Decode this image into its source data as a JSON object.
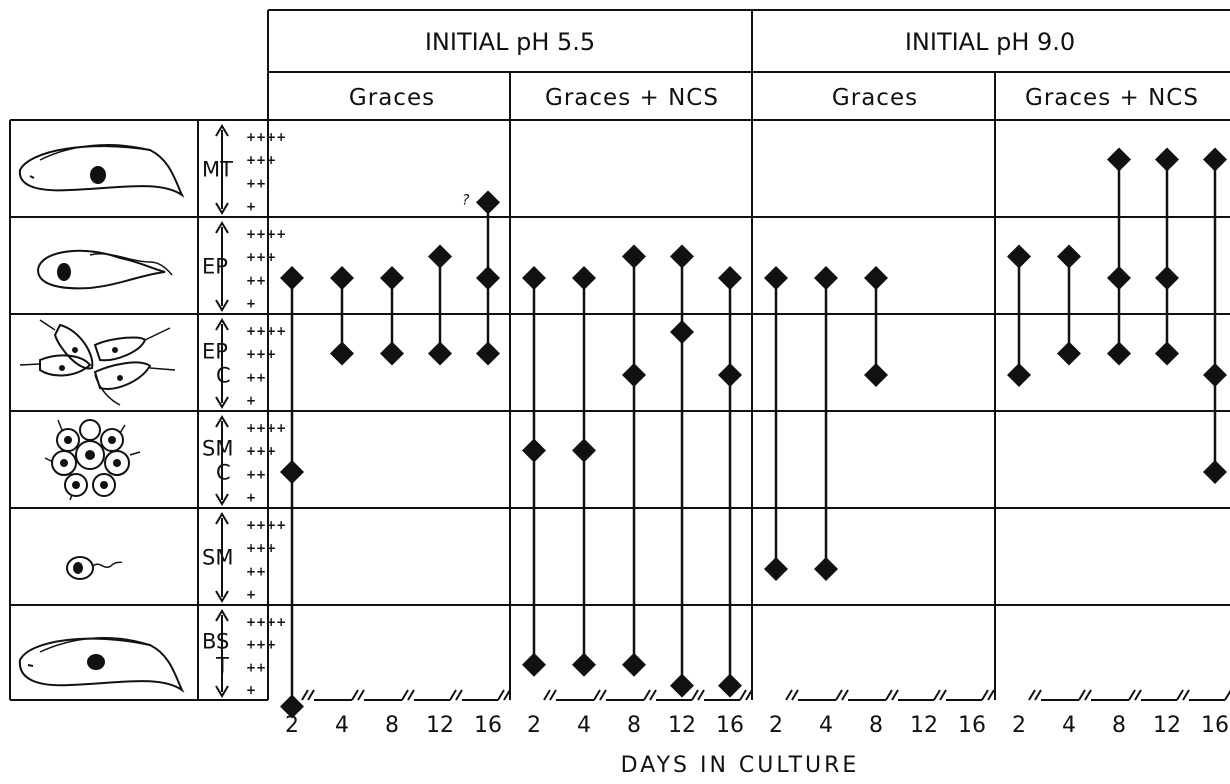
{
  "headers": {
    "ph_left": "INITIAL pH 5.5",
    "ph_right": "INITIAL pH 9.0",
    "groups": [
      "Graces",
      "Graces + NCS",
      "Graces",
      "Graces + NCS"
    ]
  },
  "rows": [
    {
      "stage": "MT",
      "icon": "metacyclic-trypomastigote-icon",
      "levels": [
        "++++",
        "+++",
        "++",
        "+"
      ]
    },
    {
      "stage": "EP",
      "icon": "epimastigote-icon",
      "levels": [
        "++++",
        "+++",
        "++",
        "+"
      ]
    },
    {
      "stage": "EP C",
      "icon": "epimastigote-cluster-icon",
      "levels": [
        "++++",
        "+++",
        "++",
        "+"
      ]
    },
    {
      "stage": "SM C",
      "icon": "sphaeromastigote-cluster-icon",
      "levels": [
        "++++",
        "+++",
        "++",
        "+"
      ]
    },
    {
      "stage": "SM",
      "icon": "sphaeromastigote-icon",
      "levels": [
        "++++",
        "+++",
        "++",
        "+"
      ]
    },
    {
      "stage": "BS T",
      "icon": "bloodstream-trypomastigote-icon",
      "levels": [
        "++++",
        "+++",
        "++",
        "+"
      ]
    }
  ],
  "days": [
    "2",
    "4",
    "8",
    "12",
    "16"
  ],
  "x_label": "DAYS IN CULTURE",
  "question_mark": "?",
  "chart_data": {
    "type": "scatter",
    "x": [
      "2",
      "4",
      "8",
      "12",
      "16"
    ],
    "y_categories": [
      "MT",
      "EP",
      "EP C",
      "SM C",
      "SM",
      "BS T"
    ],
    "y_levels": [
      "+",
      "++",
      "+++",
      "++++"
    ],
    "xlabel": "DAYS IN CULTURE",
    "series": [
      {
        "name": "Graces",
        "points": [
          {
            "day": "2",
            "markers": [
              {
                "stage": "EP",
                "level": 2
              },
              {
                "stage": "SM C",
                "level": 2
              },
              {
                "stage": "BS T",
                "level": 0
              }
            ]
          },
          {
            "day": "4",
            "markers": [
              {
                "stage": "EP",
                "level": 2
              },
              {
                "stage": "EP C",
                "level": 3
              }
            ]
          },
          {
            "day": "8",
            "markers": [
              {
                "stage": "EP",
                "level": 2
              },
              {
                "stage": "EP C",
                "level": 3
              }
            ]
          },
          {
            "day": "12",
            "markers": [
              {
                "stage": "EP",
                "level": 3
              },
              {
                "stage": "EP C",
                "level": 3
              }
            ]
          },
          {
            "day": "16",
            "markers": [
              {
                "stage": "MT",
                "level": 1,
                "note": "?"
              },
              {
                "stage": "EP",
                "level": 2
              },
              {
                "stage": "EP C",
                "level": 3
              }
            ]
          }
        ]
      },
      {
        "name": "Graces + NCS",
        "points": [
          {
            "day": "2",
            "markers": [
              {
                "stage": "EP",
                "level": 2
              },
              {
                "stage": "SM C",
                "level": 3
              },
              {
                "stage": "BS T",
                "level": 2
              }
            ]
          },
          {
            "day": "4",
            "markers": [
              {
                "stage": "EP",
                "level": 2
              },
              {
                "stage": "SM C",
                "level": 3
              },
              {
                "stage": "BS T",
                "level": 2
              }
            ]
          },
          {
            "day": "8",
            "markers": [
              {
                "stage": "EP",
                "level": 3
              },
              {
                "stage": "EP C",
                "level": 2
              },
              {
                "stage": "BS T",
                "level": 2
              }
            ]
          },
          {
            "day": "12",
            "markers": [
              {
                "stage": "EP",
                "level": 3
              },
              {
                "stage": "EP C",
                "level": 4
              },
              {
                "stage": "BS T",
                "level": 1
              }
            ]
          },
          {
            "day": "16",
            "markers": [
              {
                "stage": "EP",
                "level": 2
              },
              {
                "stage": "EP C",
                "level": 2
              },
              {
                "stage": "BS T",
                "level": 1
              }
            ]
          }
        ]
      },
      {
        "name": "Graces",
        "points": [
          {
            "day": "2",
            "markers": [
              {
                "stage": "EP",
                "level": 2
              },
              {
                "stage": "SM",
                "level": 2
              }
            ]
          },
          {
            "day": "4",
            "markers": [
              {
                "stage": "EP",
                "level": 2
              },
              {
                "stage": "SM",
                "level": 2
              }
            ]
          },
          {
            "day": "8",
            "markers": [
              {
                "stage": "EP",
                "level": 2
              },
              {
                "stage": "EP C",
                "level": 2
              }
            ]
          },
          {
            "day": "12",
            "markers": []
          },
          {
            "day": "16",
            "markers": []
          }
        ]
      },
      {
        "name": "Graces + NCS",
        "points": [
          {
            "day": "2",
            "markers": [
              {
                "stage": "EP",
                "level": 3
              },
              {
                "stage": "EP C",
                "level": 2
              }
            ]
          },
          {
            "day": "4",
            "markers": [
              {
                "stage": "EP",
                "level": 3
              },
              {
                "stage": "EP C",
                "level": 3
              }
            ]
          },
          {
            "day": "8",
            "markers": [
              {
                "stage": "MT",
                "level": 3
              },
              {
                "stage": "EP",
                "level": 2
              },
              {
                "stage": "EP C",
                "level": 3
              }
            ]
          },
          {
            "day": "12",
            "markers": [
              {
                "stage": "MT",
                "level": 3
              },
              {
                "stage": "EP",
                "level": 2
              },
              {
                "stage": "EP C",
                "level": 3
              }
            ]
          },
          {
            "day": "16",
            "markers": [
              {
                "stage": "MT",
                "level": 3
              },
              {
                "stage": "EP C",
                "level": 2
              },
              {
                "stage": "SM C",
                "level": 2
              }
            ]
          }
        ]
      }
    ]
  }
}
